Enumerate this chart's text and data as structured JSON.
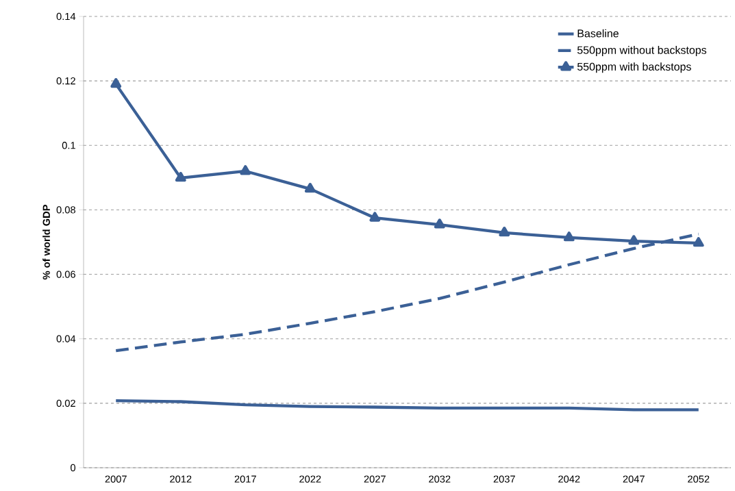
{
  "chart_data": {
    "type": "line",
    "ylabel": "% of world GDP",
    "categories": [
      "2007",
      "2012",
      "2017",
      "2022",
      "2027",
      "2032",
      "2037",
      "2042",
      "2047",
      "2052"
    ],
    "series": [
      {
        "name": "Baseline",
        "color": "#3b6096",
        "line_style": "solid",
        "marker": "none",
        "values": [
          0.0208,
          0.0205,
          0.0195,
          0.019,
          0.0188,
          0.0185,
          0.0185,
          0.0185,
          0.018,
          0.018
        ]
      },
      {
        "name": "550ppm without backstops",
        "color": "#3b6096",
        "line_style": "dashed",
        "marker": "none",
        "values": [
          0.0363,
          0.039,
          0.0414,
          0.0448,
          0.0484,
          0.0525,
          0.0576,
          0.063,
          0.068,
          0.0725
        ]
      },
      {
        "name": "550ppm with backstops",
        "color": "#3b6096",
        "line_style": "solid",
        "marker": "triangle",
        "values": [
          0.119,
          0.0899,
          0.092,
          0.0865,
          0.0775,
          0.0754,
          0.0729,
          0.0714,
          0.0703,
          0.0697
        ]
      }
    ],
    "ylim": [
      0,
      0.14
    ],
    "yticks": [
      0,
      0.02,
      0.04,
      0.06,
      0.08,
      0.1,
      0.12,
      0.14
    ],
    "grid": "y",
    "legend": "top right"
  }
}
